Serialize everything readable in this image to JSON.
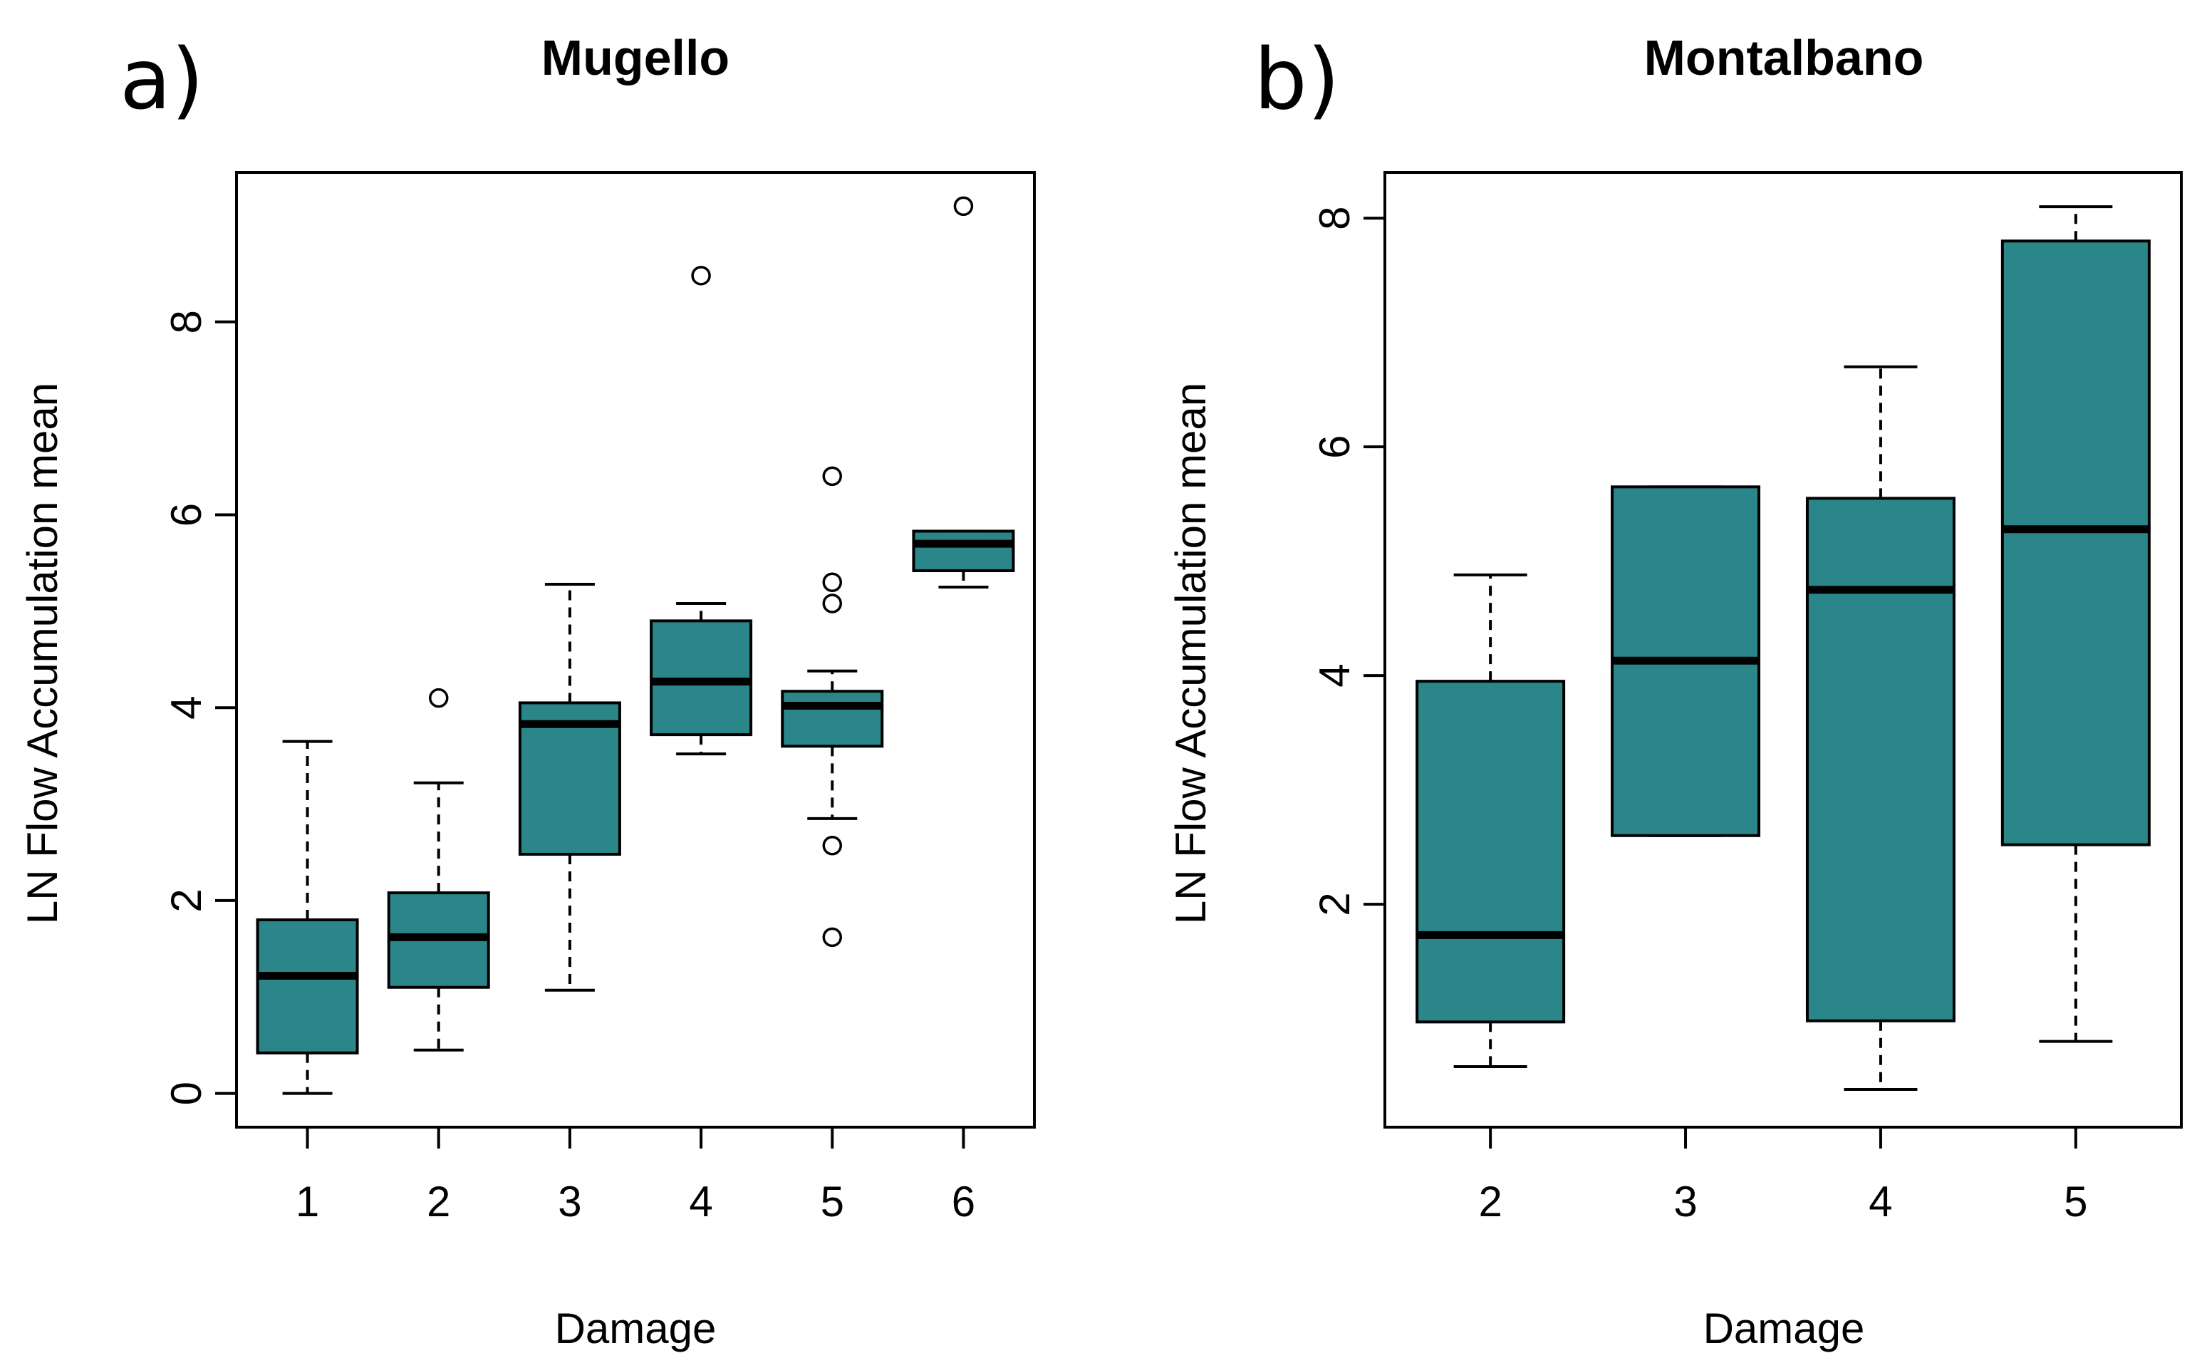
{
  "chart_data": [
    {
      "type": "boxplot",
      "panel_label": "a)",
      "title": "Mugello",
      "xlabel": "Damage",
      "ylabel": "LN Flow Accumulation mean",
      "ylim": [
        -0.35,
        9.55
      ],
      "yticks": [
        0,
        2,
        4,
        6,
        8
      ],
      "ytick_labels": [
        "0",
        "2",
        "4",
        "6",
        "8"
      ],
      "categories": [
        "1",
        "2",
        "3",
        "4",
        "5",
        "6"
      ],
      "boxes": [
        {
          "category": "1",
          "whisker_low": 0.0,
          "q1": 0.42,
          "median": 1.22,
          "q3": 1.8,
          "whisker_high": 3.65,
          "outliers": []
        },
        {
          "category": "2",
          "whisker_low": 0.45,
          "q1": 1.1,
          "median": 1.62,
          "q3": 2.08,
          "whisker_high": 3.22,
          "outliers": [
            4.1
          ]
        },
        {
          "category": "3",
          "whisker_low": 1.07,
          "q1": 2.48,
          "median": 3.83,
          "q3": 4.05,
          "whisker_high": 5.28,
          "outliers": []
        },
        {
          "category": "4",
          "whisker_low": 3.52,
          "q1": 3.72,
          "median": 4.27,
          "q3": 4.9,
          "whisker_high": 5.08,
          "outliers": [
            8.48
          ]
        },
        {
          "category": "5",
          "whisker_low": 2.85,
          "q1": 3.6,
          "median": 4.02,
          "q3": 4.17,
          "whisker_high": 4.38,
          "outliers": [
            6.4,
            5.3,
            5.08,
            2.57,
            1.62
          ]
        },
        {
          "category": "6",
          "whisker_low": 5.25,
          "q1": 5.42,
          "median": 5.7,
          "q3": 5.83,
          "whisker_high": 5.83,
          "outliers": [
            9.2
          ]
        }
      ],
      "box_color": "#2a8689",
      "grid": false
    },
    {
      "type": "boxplot",
      "panel_label": "b)",
      "title": "Montalbano",
      "xlabel": "Damage",
      "ylabel": "LN Flow Accumulation mean",
      "ylim": [
        0.05,
        8.4
      ],
      "yticks": [
        2,
        4,
        6,
        8
      ],
      "ytick_labels": [
        "2",
        "4",
        "6",
        "8"
      ],
      "categories": [
        "2",
        "3",
        "4",
        "5"
      ],
      "boxes": [
        {
          "category": "2",
          "whisker_low": 0.58,
          "q1": 0.97,
          "median": 1.73,
          "q3": 3.95,
          "whisker_high": 4.88,
          "outliers": []
        },
        {
          "category": "3",
          "whisker_low": 2.6,
          "q1": 2.6,
          "median": 4.13,
          "q3": 5.65,
          "whisker_high": 5.65,
          "outliers": []
        },
        {
          "category": "4",
          "whisker_low": 0.38,
          "q1": 0.98,
          "median": 4.75,
          "q3": 5.55,
          "whisker_high": 6.7,
          "outliers": []
        },
        {
          "category": "5",
          "whisker_low": 0.8,
          "q1": 2.52,
          "median": 5.28,
          "q3": 7.8,
          "whisker_high": 8.1,
          "outliers": []
        }
      ],
      "box_color": "#2a8689",
      "grid": false
    }
  ]
}
